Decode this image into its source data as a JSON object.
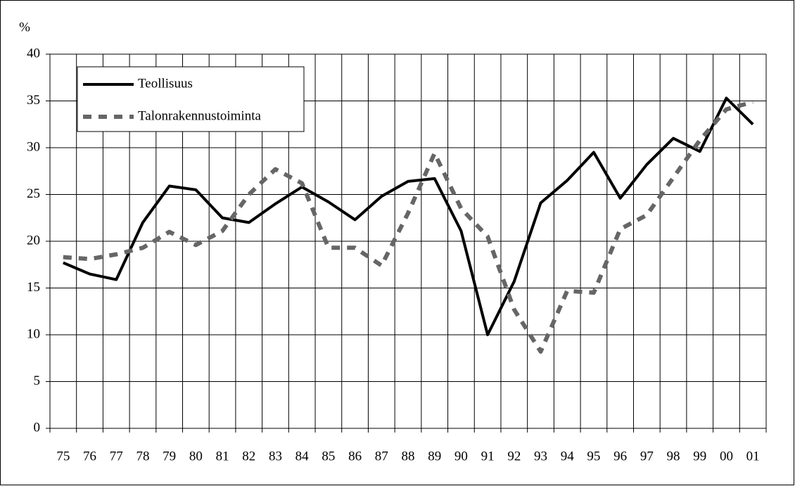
{
  "chart_data": {
    "type": "line",
    "y_label": "%",
    "categories": [
      "75",
      "76",
      "77",
      "78",
      "79",
      "80",
      "81",
      "82",
      "83",
      "84",
      "85",
      "86",
      "87",
      "88",
      "89",
      "90",
      "91",
      "92",
      "93",
      "94",
      "95",
      "96",
      "97",
      "98",
      "99",
      "00",
      "01"
    ],
    "series": [
      {
        "name": "Teollisuus",
        "color": "#000000",
        "style": "solid",
        "values": [
          17.7,
          16.5,
          15.9,
          22.0,
          25.9,
          25.5,
          22.5,
          22.0,
          24.0,
          25.8,
          24.2,
          22.3,
          24.8,
          26.4,
          26.7,
          21.1,
          10.0,
          15.7,
          24.1,
          26.5,
          29.5,
          24.6,
          28.2,
          31.0,
          29.6,
          35.3,
          32.5
        ]
      },
      {
        "name": "Talonrakennustoiminta",
        "color": "#666666",
        "style": "dashed",
        "values": [
          18.3,
          18.1,
          18.6,
          19.3,
          21.0,
          19.6,
          21.1,
          25.0,
          27.7,
          26.2,
          19.3,
          19.3,
          17.4,
          23.0,
          29.4,
          23.5,
          20.5,
          12.7,
          8.2,
          14.7,
          14.5,
          21.3,
          22.8,
          26.8,
          30.8,
          34.1,
          34.9
        ]
      }
    ],
    "ylim": [
      0,
      40
    ],
    "yticks": [
      0,
      5,
      10,
      15,
      20,
      25,
      30,
      35,
      40
    ],
    "grid": true,
    "legend": "upper left"
  }
}
